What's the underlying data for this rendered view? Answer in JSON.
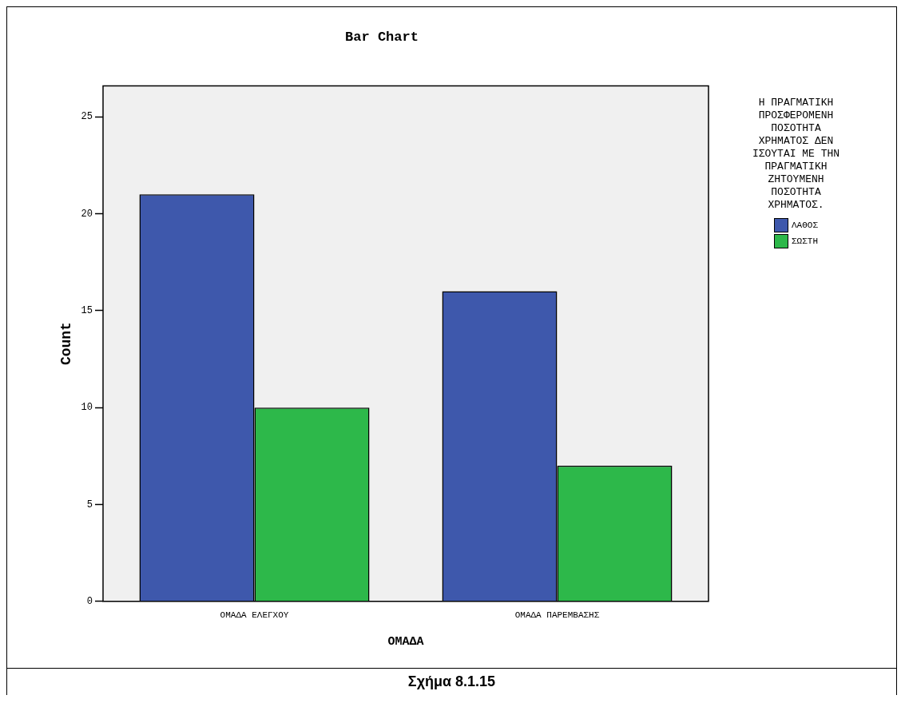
{
  "chart_data": {
    "type": "bar",
    "title": "Bar Chart",
    "xlabel": "ΟΜΑΔΑ",
    "ylabel": "Count",
    "legend_title": "Η ΠΡΑΓΜΑΤΙΚΗ ΠΡΟΣΦΕΡΟΜΕΝΗ ΠΟΣΟΤΗΤΑ ΧΡΗΜΑΤΟΣ ΔΕΝ ΙΣΟΥΤΑΙ ΜΕ ΤΗΝ ΠΡΑΓΜΑΤΙΚΗ ΖΗΤΟΥΜΕΝΗ ΠΟΣΟΤΗΤΑ ΧΡΗΜΑΤΟΣ.",
    "annotations": [
      "Σχήμα 8.1.15"
    ],
    "categories": [
      "ΟΜΑΔΑ ΕΛΕΓΧΟΥ",
      "ΟΜΑΔΑ ΠΑΡΕΜΒΑΣΗΣ"
    ],
    "series": [
      {
        "name": "ΛΑΘΟΣ",
        "color": "#3e58ac",
        "values": [
          21,
          16
        ]
      },
      {
        "name": "ΣΩΣΤΗ",
        "color": "#2db84a",
        "values": [
          10,
          7
        ]
      }
    ],
    "ylim": [
      0,
      26.6
    ],
    "yticks": [
      0,
      5,
      10,
      15,
      20,
      25
    ],
    "grid": false,
    "legend": "right"
  }
}
